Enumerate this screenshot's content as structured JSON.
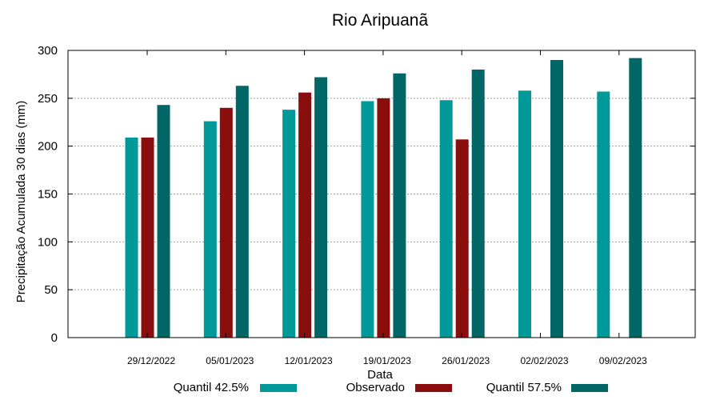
{
  "chart_data": {
    "type": "bar",
    "title": "Rio Aripuanã",
    "xlabel": "Data",
    "ylabel": "Precipitação Acumulada 30 dias (mm)",
    "ylim": [
      0,
      300
    ],
    "yticks": [
      0,
      50,
      100,
      150,
      200,
      250,
      300
    ],
    "grid": true,
    "legend_position": "bottom",
    "categories": [
      "29/12/2022",
      "05/01/2023",
      "12/01/2023",
      "19/01/2023",
      "26/01/2023",
      "02/02/2023",
      "09/02/2023"
    ],
    "series": [
      {
        "name": "Quantil 42.5%",
        "color": "#009999",
        "values": [
          209,
          226,
          238,
          247,
          248,
          258,
          257
        ]
      },
      {
        "name": "Observado",
        "color": "#8b0e0e",
        "values": [
          209,
          240,
          256,
          250,
          207,
          null,
          null
        ]
      },
      {
        "name": "Quantil 57.5%",
        "color": "#006666",
        "values": [
          243,
          263,
          272,
          276,
          280,
          290,
          292
        ]
      }
    ]
  }
}
